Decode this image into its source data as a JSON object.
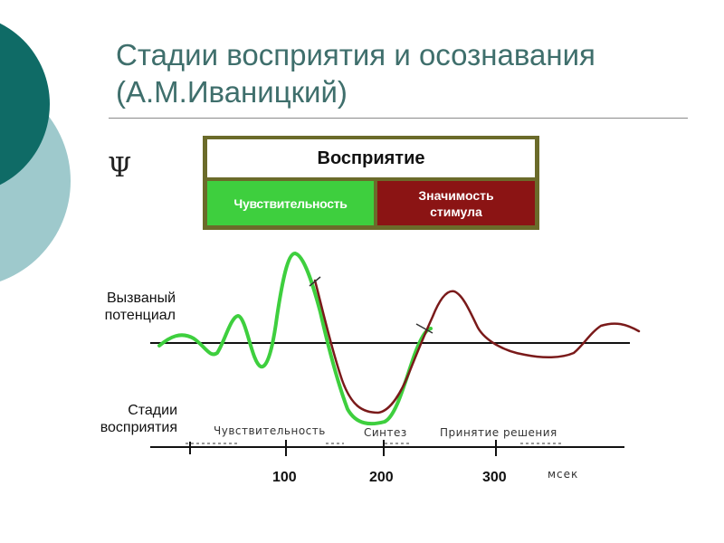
{
  "slide": {
    "title_line1": "Стадии восприятия и осознавания",
    "title_line2": "(А.М.Иваницкий)",
    "psi_symbol": "Ψ"
  },
  "perception_box": {
    "header": "Восприятие",
    "sensitivity": "Чувствительность",
    "significance_line1": "Значимость",
    "significance_line2": "стимула",
    "colors": {
      "border": "#6b6b2a",
      "sensitivity": "#3ecf3e",
      "significance": "#8b1414"
    }
  },
  "labels": {
    "evoked_line1": "Вызваный",
    "evoked_line2": "потенциал",
    "stages_line1": "Стадии",
    "stages_line2": "восприятия"
  },
  "stages": {
    "sensitivity": "Чувствительность",
    "synthesis": "Синтез",
    "decision": "Принятие решения"
  },
  "time_axis": {
    "ticks": [
      "100",
      "200",
      "300"
    ],
    "unit": "мсек"
  },
  "colors": {
    "green_curve": "#3ecf3e",
    "red_curve": "#7a1a1a",
    "accent": "#3f6f6c"
  }
}
